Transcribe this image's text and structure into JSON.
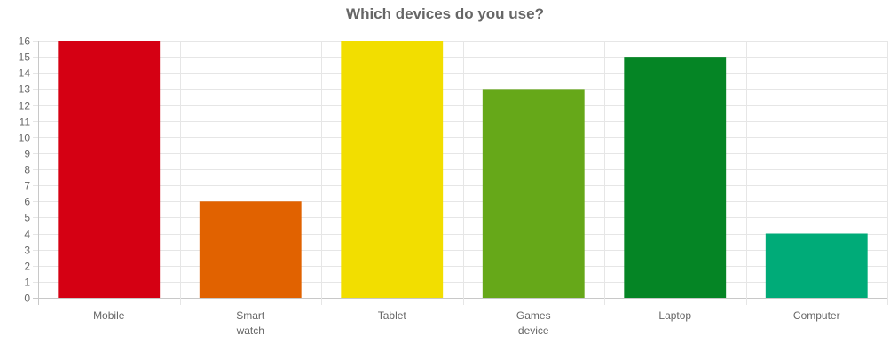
{
  "chart_data": {
    "type": "bar",
    "title": "Which devices do you use?",
    "categories": [
      [
        "Mobile"
      ],
      [
        "Smart",
        "watch"
      ],
      [
        "Tablet"
      ],
      [
        "Games",
        "device"
      ],
      [
        "Laptop"
      ],
      [
        "Computer"
      ]
    ],
    "values": [
      16,
      6,
      16,
      13,
      15,
      4
    ],
    "colors": [
      "#d50013",
      "#e16200",
      "#f2de00",
      "#66a819",
      "#058525",
      "#00ab78"
    ],
    "ylim": [
      0,
      16
    ],
    "yticks": [
      0,
      1,
      2,
      3,
      4,
      5,
      6,
      7,
      8,
      9,
      10,
      11,
      12,
      13,
      14,
      15,
      16
    ],
    "grid": true,
    "xlabel": "",
    "ylabel": ""
  }
}
